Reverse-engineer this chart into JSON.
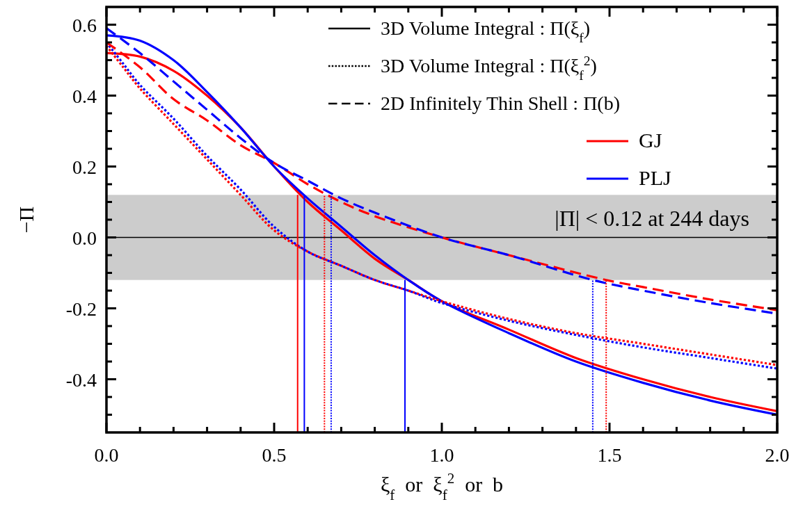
{
  "chart_data": {
    "type": "line",
    "xlabel": "ξ$_{f}$  or  ξ$_{f}$$^{2}$  or  b",
    "ylabel": "−Π",
    "xlim": [
      0,
      2
    ],
    "ylim": [
      -0.55,
      0.65
    ],
    "xticks": [
      {
        "value": 0,
        "label": "0.0"
      },
      {
        "value": 0.1,
        "label": null
      },
      {
        "value": 0.2,
        "label": null
      },
      {
        "value": 0.3,
        "label": null
      },
      {
        "value": 0.4,
        "label": null
      },
      0.5,
      {
        "value": 0.6,
        "label": null
      },
      {
        "value": 0.7,
        "label": null
      },
      {
        "value": 0.8,
        "label": null
      },
      {
        "value": 0.9,
        "label": null
      },
      {
        "value": 1,
        "label": "1.0"
      },
      {
        "value": 1.1,
        "label": null
      },
      {
        "value": 1.2,
        "label": null
      },
      {
        "value": 1.3,
        "label": null
      },
      {
        "value": 1.4,
        "label": null
      },
      1.5,
      {
        "value": 1.6,
        "label": null
      },
      {
        "value": 1.7,
        "label": null
      },
      {
        "value": 1.8,
        "label": null
      },
      {
        "value": 1.9,
        "label": null
      },
      {
        "value": 2,
        "label": "2.0"
      }
    ],
    "yticks": [
      {
        "value": -0.5,
        "label": null
      },
      {
        "value": -0.45,
        "label": null
      },
      {
        "value": -0.4,
        "label": "-0.4"
      },
      {
        "value": -0.35,
        "label": null
      },
      {
        "value": -0.3,
        "label": null
      },
      {
        "value": -0.25,
        "label": null
      },
      {
        "value": -0.2,
        "label": "-0.2"
      },
      {
        "value": -0.15,
        "label": null
      },
      {
        "value": -0.1,
        "label": null
      },
      {
        "value": -0.05,
        "label": null
      },
      {
        "value": 0,
        "label": "0.0"
      },
      {
        "value": 0.05,
        "label": null
      },
      {
        "value": 0.1,
        "label": null
      },
      {
        "value": 0.15,
        "label": null
      },
      0.2,
      {
        "value": 0.25,
        "label": null
      },
      {
        "value": 0.3,
        "label": null
      },
      {
        "value": 0.35,
        "label": null
      },
      0.4,
      {
        "value": 0.45,
        "label": null
      },
      {
        "value": 0.5,
        "label": null
      },
      {
        "value": 0.55,
        "label": null
      },
      0.6
    ],
    "grid": false,
    "legend": "top right",
    "bands": [
      {
        "axis": "y",
        "from": -0.12,
        "to": 0.12,
        "label": "|Π| < 0.12 at 244 days",
        "color": "#cccccc"
      }
    ],
    "ref_lines": [
      {
        "axis": "y",
        "value": 0,
        "color": "#000000",
        "line_style": "solid"
      }
    ],
    "series": [
      {
        "name": "3D Volume Integral : Π(ξ$_{f}$)",
        "color": "#000000",
        "line_style": "solid"
      },
      {
        "name": "3D Volume Integral : Π(ξ$_{f}$$^{2}$)",
        "color": "#000000",
        "line_style": "dotted"
      },
      {
        "name": "2D Infinitely Thin Shell : Π(b)",
        "color": "#000000",
        "line_style": "dashed"
      },
      {
        "name": "GJ",
        "color": "#ff0000",
        "line_style": "solid",
        "x": [
          0,
          0.1,
          0.2,
          0.3,
          0.4,
          0.5,
          0.6,
          0.7,
          0.8,
          0.9,
          1.0,
          1.2,
          1.4,
          1.6,
          1.8,
          2.0
        ],
        "values": [
          0.52,
          0.51,
          0.47,
          0.4,
          0.31,
          0.2,
          0.1,
          0.02,
          -0.06,
          -0.12,
          -0.18,
          -0.26,
          -0.34,
          -0.4,
          -0.45,
          -0.49
        ]
      },
      {
        "name": "PLJ",
        "color": "#0000ff",
        "line_style": "solid",
        "x": [
          0,
          0.1,
          0.2,
          0.3,
          0.4,
          0.5,
          0.6,
          0.7,
          0.8,
          0.9,
          1.0,
          1.2,
          1.4,
          1.6,
          1.8,
          2.0
        ],
        "values": [
          0.57,
          0.555,
          0.5,
          0.41,
          0.31,
          0.2,
          0.11,
          0.03,
          -0.05,
          -0.12,
          -0.18,
          -0.27,
          -0.35,
          -0.41,
          -0.46,
          -0.5
        ]
      },
      {
        "color": "#ff0000",
        "line_style": "dotted",
        "x": [
          0,
          0.05,
          0.1,
          0.2,
          0.3,
          0.4,
          0.5,
          0.6,
          0.7,
          0.8,
          0.9,
          1.0,
          1.2,
          1.4,
          1.6,
          1.8,
          2.0
        ],
        "values": [
          0.54,
          0.48,
          0.42,
          0.32,
          0.22,
          0.12,
          0.02,
          -0.04,
          -0.08,
          -0.12,
          -0.15,
          -0.18,
          -0.23,
          -0.27,
          -0.3,
          -0.33,
          -0.36
        ]
      },
      {
        "color": "#0000ff",
        "line_style": "dotted",
        "x": [
          0,
          0.05,
          0.1,
          0.2,
          0.3,
          0.4,
          0.5,
          0.6,
          0.7,
          0.8,
          0.9,
          1.0,
          1.2,
          1.4,
          1.6,
          1.8,
          2.0
        ],
        "values": [
          0.55,
          0.49,
          0.43,
          0.335,
          0.23,
          0.135,
          0.03,
          -0.04,
          -0.08,
          -0.12,
          -0.15,
          -0.185,
          -0.235,
          -0.275,
          -0.31,
          -0.34,
          -0.37
        ]
      },
      {
        "color": "#ff0000",
        "line_style": "dashed",
        "x": [
          0,
          0.1,
          0.2,
          0.3,
          0.4,
          0.5,
          0.6,
          0.7,
          0.8,
          1.0,
          1.2,
          1.49,
          1.6,
          1.8,
          2.0
        ],
        "values": [
          0.55,
          0.48,
          0.39,
          0.33,
          0.26,
          0.21,
          0.15,
          0.1,
          0.06,
          0.0,
          -0.05,
          -0.12,
          -0.14,
          -0.175,
          -0.205
        ]
      },
      {
        "color": "#0000ff",
        "line_style": "dashed",
        "x": [
          0,
          0.1,
          0.2,
          0.3,
          0.4,
          0.5,
          0.6,
          0.7,
          0.8,
          1.0,
          1.2,
          1.45,
          1.6,
          1.8,
          2.0
        ],
        "values": [
          0.59,
          0.52,
          0.44,
          0.36,
          0.28,
          0.21,
          0.16,
          0.11,
          0.07,
          0.0,
          -0.05,
          -0.12,
          -0.15,
          -0.185,
          -0.215
        ]
      },
      {
        "color": "#ff0000",
        "line_style": "solid",
        "x": [
          0.57,
          0.57
        ],
        "values": [
          -0.55,
          0.12
        ]
      },
      {
        "color": "#0000ff",
        "line_style": "solid",
        "x": [
          0.59,
          0.59
        ],
        "values": [
          -0.55,
          0.12
        ]
      },
      {
        "color": "#ff0000",
        "line_style": "dotted",
        "x": [
          0.65,
          0.65
        ],
        "values": [
          -0.55,
          0.12
        ]
      },
      {
        "color": "#0000ff",
        "line_style": "dotted",
        "x": [
          0.67,
          0.67
        ],
        "values": [
          -0.55,
          0.12
        ]
      },
      {
        "color": "#0000ff",
        "line_style": "solid",
        "x": [
          0.89,
          0.89
        ],
        "values": [
          -0.55,
          -0.12
        ]
      },
      {
        "color": "#0000ff",
        "line_style": "dotted",
        "x": [
          1.45,
          1.45
        ],
        "values": [
          -0.55,
          -0.12
        ]
      },
      {
        "color": "#ff0000",
        "line_style": "dotted",
        "x": [
          1.49,
          1.49
        ],
        "values": [
          -0.55,
          -0.12
        ]
      }
    ]
  }
}
